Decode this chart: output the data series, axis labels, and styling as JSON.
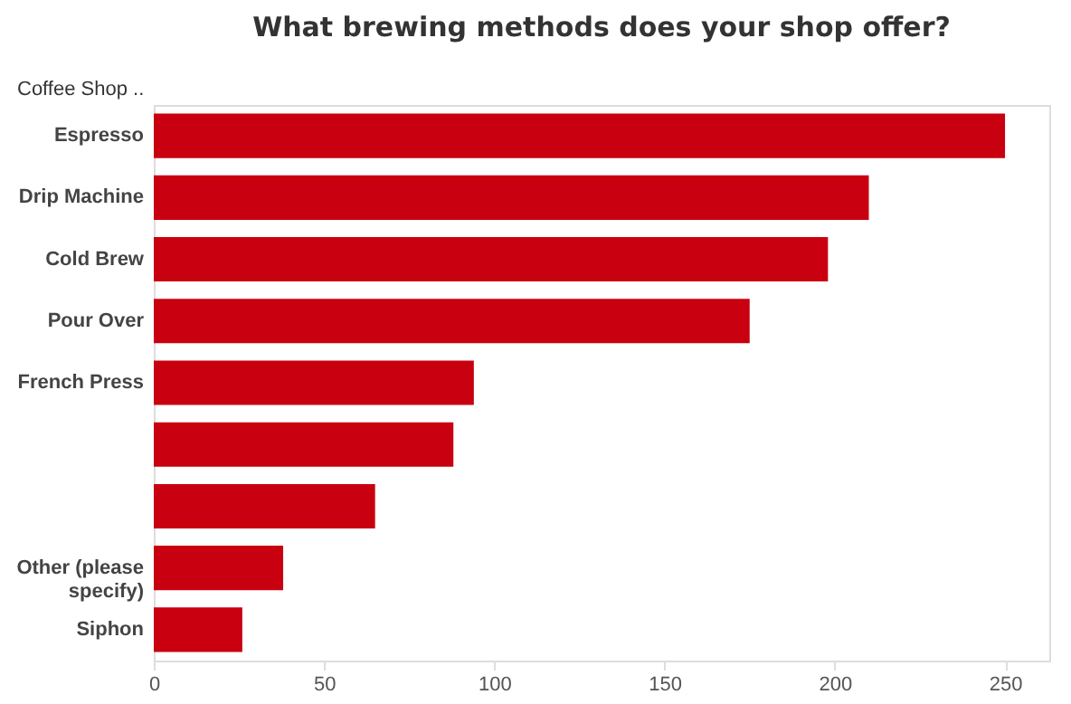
{
  "chart_data": {
    "type": "bar",
    "orientation": "horizontal",
    "title": "What brewing methods does your shop offer?",
    "ylabel": "Coffee Shop ..",
    "categories": [
      "Espresso",
      "Drip Machine",
      "Cold Brew",
      "Pour Over",
      "French Press",
      null,
      null,
      "Other (please specify)",
      "Siphon"
    ],
    "values": [
      250,
      210,
      198,
      175,
      94,
      88,
      65,
      38,
      26
    ],
    "color": "#c8000f",
    "xlim": [
      0,
      263
    ],
    "xticks": [
      0,
      50,
      100,
      150,
      200,
      250
    ],
    "grid": false
  }
}
